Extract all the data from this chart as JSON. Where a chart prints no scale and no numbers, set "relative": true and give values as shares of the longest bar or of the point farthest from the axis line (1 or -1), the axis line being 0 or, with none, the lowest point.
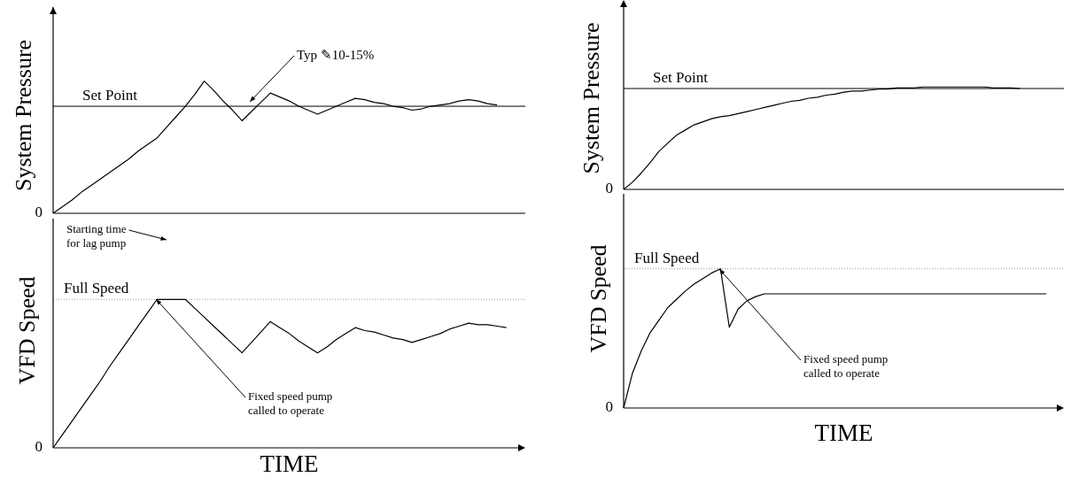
{
  "chart_data": [
    {
      "type": "line",
      "relative": true,
      "ylabel": "System Pressure",
      "tick_labels": false,
      "marker": "none",
      "categories": [
        null,
        null,
        null,
        null,
        null,
        null,
        null,
        null,
        null,
        null,
        null,
        null,
        null,
        null,
        null,
        null,
        null,
        null,
        null,
        null,
        null,
        null,
        null,
        null,
        null,
        null,
        null,
        null,
        null,
        null,
        null,
        null,
        null,
        null,
        null,
        null,
        null,
        null,
        null,
        null,
        null,
        null,
        null,
        null,
        null,
        null,
        null,
        null,
        null,
        null,
        null
      ],
      "series": [
        {
          "color": "#000000",
          "values": [
            0,
            0.05,
            0.1,
            0.16,
            0.21,
            0.26,
            0.31,
            0.36,
            0.41,
            0.47,
            0.52,
            0.57,
            0.65,
            0.73,
            0.81,
            0.9,
            1.0,
            0.93,
            0.85,
            0.78,
            0.7,
            0.77,
            0.84,
            0.91,
            0.88,
            0.85,
            0.81,
            0.78,
            0.75,
            0.78,
            0.81,
            0.84,
            0.87,
            0.86,
            0.84,
            0.83,
            0.81,
            0.8,
            0.78,
            0.79,
            0.81,
            0.82,
            0.83,
            0.85,
            0.86,
            0.85,
            0.83,
            0.82,
            null,
            null,
            null
          ]
        }
      ],
      "ref_lines": [
        {
          "axis": "y",
          "value": 0.81,
          "label": "Set Point",
          "color": "#000000",
          "line_style": "solid"
        }
      ],
      "annotations": [
        "0",
        "Typ ✎10-15%"
      ]
    },
    {
      "type": "line",
      "relative": true,
      "ylabel": "VFD Speed",
      "xlabel": "TIME",
      "tick_labels": false,
      "marker": "none",
      "categories": [
        null,
        null,
        null,
        null,
        null,
        null,
        null,
        null,
        null,
        null,
        null,
        null,
        null,
        null,
        null,
        null,
        null,
        null,
        null,
        null,
        null,
        null,
        null,
        null,
        null,
        null,
        null,
        null,
        null,
        null,
        null,
        null,
        null,
        null,
        null,
        null,
        null,
        null,
        null,
        null,
        null,
        null,
        null,
        null,
        null,
        null,
        null,
        null,
        null,
        null,
        null
      ],
      "series": [
        {
          "color": "#000000",
          "values": [
            0,
            0.09,
            0.18,
            0.27,
            0.36,
            0.45,
            0.55,
            0.64,
            0.73,
            0.82,
            0.91,
            1,
            1,
            1,
            1,
            0.94,
            0.88,
            0.82,
            0.76,
            0.7,
            0.64,
            0.71,
            0.78,
            0.85,
            0.81,
            0.77,
            0.72,
            0.68,
            0.64,
            0.68,
            0.73,
            0.77,
            0.81,
            0.79,
            0.78,
            0.76,
            0.74,
            0.73,
            0.71,
            0.73,
            0.75,
            0.77,
            0.8,
            0.82,
            0.84,
            0.83,
            0.83,
            0.82,
            0.81,
            null,
            null
          ]
        }
      ],
      "ref_lines": [
        {
          "axis": "y",
          "value": 1,
          "label": "Full Speed",
          "color": "#999999",
          "line_style": "dotted"
        }
      ],
      "annotations": [
        "0",
        "Starting time\nfor lag pump",
        "Fixed speed pump\ncalled to operate"
      ]
    },
    {
      "type": "line",
      "relative": true,
      "ylabel": "System Pressure",
      "tick_labels": false,
      "marker": "none",
      "categories": [
        null,
        null,
        null,
        null,
        null,
        null,
        null,
        null,
        null,
        null,
        null,
        null,
        null,
        null,
        null,
        null,
        null,
        null,
        null,
        null,
        null,
        null,
        null,
        null,
        null,
        null,
        null,
        null,
        null,
        null,
        null,
        null,
        null,
        null,
        null,
        null,
        null,
        null,
        null,
        null,
        null,
        null,
        null,
        null,
        null,
        null,
        null,
        null,
        null,
        null,
        null
      ],
      "series": [
        {
          "color": "#000000",
          "values": [
            0,
            0.07,
            0.16,
            0.26,
            0.37,
            0.45,
            0.53,
            0.58,
            0.63,
            0.66,
            0.69,
            0.71,
            0.72,
            0.74,
            0.76,
            0.78,
            0.8,
            0.82,
            0.84,
            0.86,
            0.87,
            0.89,
            0.9,
            0.92,
            0.93,
            0.95,
            0.96,
            0.96,
            0.97,
            0.98,
            0.98,
            0.99,
            0.99,
            0.99,
            1,
            1,
            1,
            1,
            1,
            1,
            1,
            1,
            0.99,
            0.99,
            0.99,
            0.985,
            null,
            null,
            null,
            null,
            null
          ]
        }
      ],
      "ref_lines": [
        {
          "axis": "y",
          "value": 0.985,
          "label": "Set Point",
          "color": "#000000",
          "line_style": "solid"
        }
      ],
      "annotations": [
        "0"
      ]
    },
    {
      "type": "line",
      "relative": true,
      "ylabel": "VFD Speed",
      "xlabel": "TIME",
      "tick_labels": false,
      "marker": "none",
      "categories": [
        null,
        null,
        null,
        null,
        null,
        null,
        null,
        null,
        null,
        null,
        null,
        null,
        null,
        null,
        null,
        null,
        null,
        null,
        null,
        null,
        null,
        null,
        null,
        null,
        null,
        null,
        null,
        null,
        null,
        null,
        null,
        null,
        null,
        null,
        null,
        null,
        null,
        null,
        null,
        null,
        null,
        null,
        null,
        null,
        null,
        null,
        null,
        null,
        null,
        null,
        null
      ],
      "series": [
        {
          "color": "#000000",
          "values": [
            0,
            0.25,
            0.41,
            0.54,
            0.63,
            0.72,
            0.78,
            0.84,
            0.89,
            0.93,
            0.97,
            1,
            0.58,
            0.71,
            0.77,
            0.8,
            0.82,
            0.82,
            0.82,
            0.82,
            0.82,
            0.82,
            0.82,
            0.82,
            0.82,
            0.82,
            0.82,
            0.82,
            0.82,
            0.82,
            0.82,
            0.82,
            0.82,
            0.82,
            0.82,
            0.82,
            0.82,
            0.82,
            0.82,
            0.82,
            0.82,
            0.82,
            0.82,
            0.82,
            0.82,
            0.82,
            0.82,
            0.82,
            0.82,
            null,
            null
          ]
        }
      ],
      "ref_lines": [
        {
          "axis": "y",
          "value": 1,
          "label": "Full Speed",
          "color": "#999999",
          "line_style": "dotted"
        }
      ],
      "annotations": [
        "0",
        "Fixed speed pump\ncalled to operate"
      ]
    }
  ]
}
